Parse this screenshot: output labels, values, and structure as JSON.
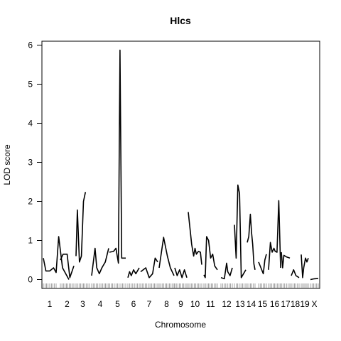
{
  "chart_data": {
    "type": "line",
    "title": "Hlcs",
    "xlabel": "Chromosome",
    "ylabel": "LOD score",
    "ylim": [
      0,
      6
    ],
    "yticks": [
      0,
      1,
      2,
      3,
      4,
      5,
      6
    ],
    "grid": false,
    "legend": "none",
    "line_color": "#000000",
    "chromosomes": [
      {
        "label": "1",
        "x": [
          0.0,
          0.2,
          0.5,
          0.8,
          1.0,
          1.2,
          1.5,
          2.0
        ],
        "y": [
          0.55,
          0.22,
          0.22,
          0.3,
          0.18,
          1.1,
          0.3,
          0.0
        ]
      },
      {
        "label": "2",
        "x": [
          0.0,
          0.2,
          0.5,
          0.7,
          0.85,
          1.0
        ],
        "y": [
          0.5,
          0.65,
          0.65,
          0.05,
          0.2,
          0.35
        ]
      },
      {
        "label": "3",
        "x": [
          0.0,
          0.1,
          0.25,
          0.4,
          0.55,
          0.7
        ],
        "y": [
          0.6,
          1.78,
          0.45,
          0.6,
          2.0,
          2.24
        ]
      },
      {
        "label": "4",
        "x": [
          0.0,
          0.2,
          0.3,
          0.45,
          0.6,
          0.8,
          1.0
        ],
        "y": [
          0.1,
          0.8,
          0.3,
          0.15,
          0.3,
          0.45,
          0.8
        ]
      },
      {
        "label": "5",
        "x": [
          0.0,
          0.25,
          0.4,
          0.55,
          0.65,
          0.75,
          1.0
        ],
        "y": [
          0.7,
          0.72,
          0.8,
          0.42,
          5.87,
          0.55,
          0.55
        ]
      },
      {
        "label": "6",
        "x": [
          0.0,
          0.15,
          0.3,
          0.5,
          0.7,
          1.0
        ],
        "y": [
          0.05,
          0.2,
          0.1,
          0.25,
          0.15,
          0.3
        ]
      },
      {
        "label": "7",
        "x": [
          0.0,
          0.3,
          0.5,
          0.7,
          0.85,
          1.0
        ],
        "y": [
          0.2,
          0.3,
          0.05,
          0.15,
          0.55,
          0.45
        ]
      },
      {
        "label": "8",
        "x": [
          0.0,
          0.3,
          0.55,
          0.75,
          1.0
        ],
        "y": [
          0.3,
          1.08,
          0.6,
          0.3,
          0.1
        ]
      },
      {
        "label": "9",
        "x": [
          0.0,
          0.2,
          0.4,
          0.6,
          0.8,
          1.0
        ],
        "y": [
          0.3,
          0.1,
          0.25,
          0.05,
          0.25,
          0.05
        ]
      },
      {
        "label": "10",
        "x": [
          0.0,
          0.25,
          0.4,
          0.5,
          0.6,
          0.75,
          0.9,
          1.0
        ],
        "y": [
          1.73,
          0.9,
          0.6,
          0.8,
          0.65,
          0.72,
          0.7,
          0.38
        ]
      },
      {
        "label": "11",
        "x": [
          0.0,
          0.1,
          0.2,
          0.35,
          0.5,
          0.65,
          0.8,
          1.0
        ],
        "y": [
          0.12,
          0.05,
          1.1,
          1.0,
          0.55,
          0.65,
          0.35,
          0.25
        ]
      },
      {
        "label": "12",
        "x": [
          0.0,
          0.3,
          0.5,
          0.6,
          0.8,
          1.0
        ],
        "y": [
          0.05,
          0.02,
          0.42,
          0.2,
          0.1,
          0.3
        ]
      },
      {
        "label": "13",
        "x": [
          0.0,
          0.15,
          0.3,
          0.45,
          0.6,
          1.0
        ],
        "y": [
          1.4,
          0.55,
          2.42,
          2.2,
          0.05,
          0.25
        ]
      },
      {
        "label": "14",
        "x": [
          0.0,
          0.2,
          0.4,
          0.55,
          0.7,
          0.85,
          1.0
        ],
        "y": [
          0.95,
          1.1,
          1.67,
          1.2,
          0.9,
          0.4,
          0.25
        ]
      },
      {
        "label": "15",
        "x": [
          0.0,
          0.3,
          0.6,
          0.8,
          1.0
        ],
        "y": [
          0.45,
          0.3,
          0.15,
          0.5,
          0.65
        ]
      },
      {
        "label": "16",
        "x": [
          0.0,
          0.15,
          0.3,
          0.45,
          0.55,
          0.7,
          0.85,
          1.0
        ],
        "y": [
          0.25,
          0.95,
          0.7,
          0.8,
          0.72,
          0.7,
          2.02,
          0.3
        ]
      },
      {
        "label": "17",
        "x": [
          0.0,
          0.15,
          0.3,
          0.6,
          1.0
        ],
        "y": [
          0.7,
          0.3,
          0.62,
          0.58,
          0.55
        ]
      },
      {
        "label": "18",
        "x": [
          0.0,
          0.3,
          0.6,
          1.0
        ],
        "y": [
          0.1,
          0.25,
          0.1,
          0.05
        ]
      },
      {
        "label": "19",
        "x": [
          0.0,
          0.2,
          0.35,
          0.6,
          0.8,
          1.0
        ],
        "y": [
          0.64,
          0.05,
          0.3,
          0.55,
          0.45,
          0.55
        ]
      },
      {
        "label": "X",
        "x": [
          0.0,
          0.5,
          1.0
        ],
        "y": [
          0.0,
          0.02,
          0.03
        ]
      }
    ]
  }
}
